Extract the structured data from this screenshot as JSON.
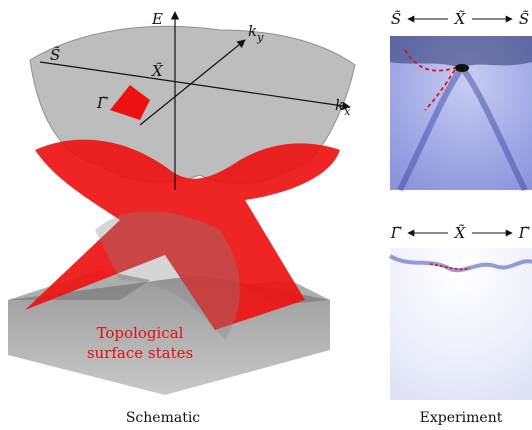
{
  "schematic": {
    "axis_labels": {
      "energy": "E",
      "ky": {
        "base": "k",
        "sub": "y"
      },
      "kx": {
        "base": "k",
        "sub": "x"
      }
    },
    "points": {
      "s": "S̃",
      "x": "X̃",
      "gamma": "Γ̃"
    },
    "annotation": [
      "Topological",
      "surface states"
    ],
    "caption": "Schematic"
  },
  "experiment": {
    "top_panel": {
      "left": "S̃",
      "center": "X̃",
      "right": "S̃"
    },
    "bottom_panel": {
      "left": "Γ̃",
      "center": "X̃",
      "right": "Γ̃"
    },
    "caption": "Experiment"
  }
}
